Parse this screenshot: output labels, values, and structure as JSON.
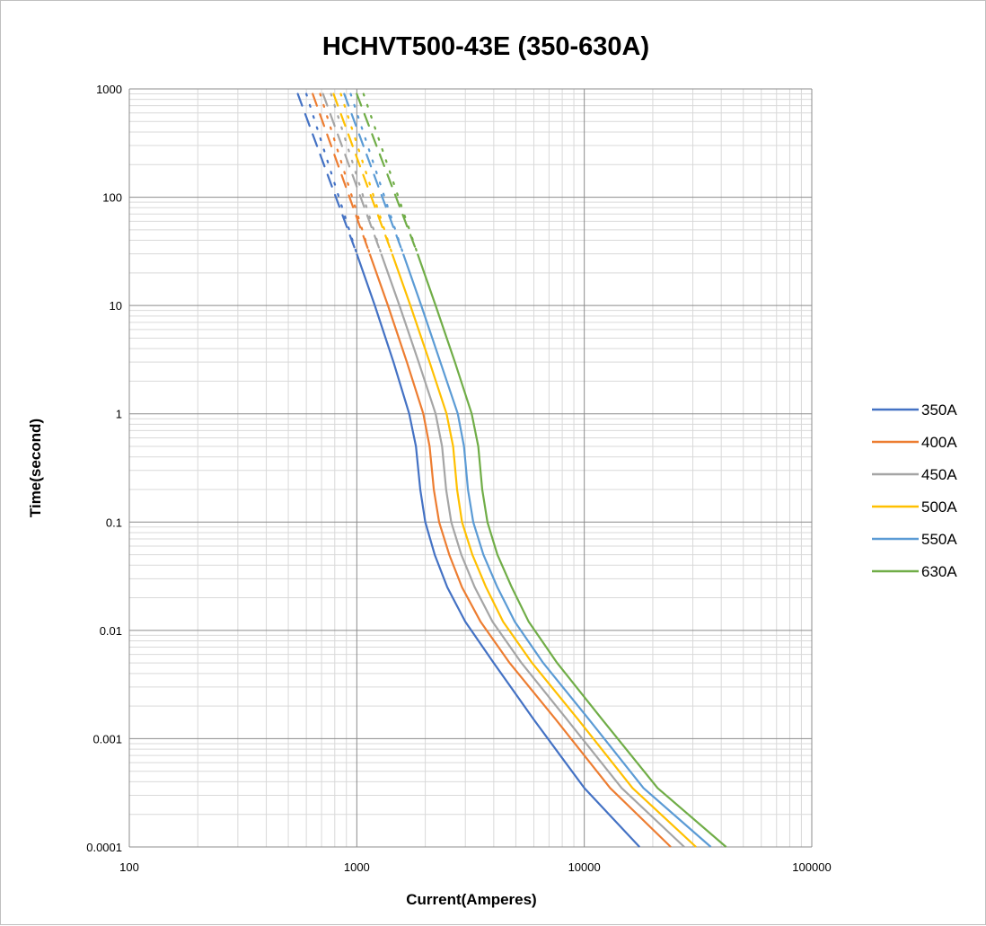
{
  "chart_data": {
    "type": "line",
    "title": "HCHVT500-43E  (350-630A)",
    "xlabel": "Current(Amperes)",
    "ylabel": "Time(second)",
    "x_scale": "log",
    "y_scale": "log",
    "xlim": [
      100,
      100000
    ],
    "ylim": [
      0.0001,
      1000
    ],
    "x_ticks": [
      "100",
      "1000",
      "10000",
      "100000"
    ],
    "y_ticks": [
      "0.0001",
      "0.001",
      "0.01",
      "0.1",
      "1",
      "10",
      "100",
      "1000"
    ],
    "grid": true,
    "legend_position": "right",
    "series": [
      {
        "name": "350A",
        "color": "#4472c4",
        "extrapolated_segments": [
          {
            "style": "dashed",
            "points": [
              [
                550,
                900
              ],
              [
                1000,
                30
              ]
            ]
          },
          {
            "style": "dotted",
            "points": [
              [
                600,
                900
              ],
              [
                1000,
                30
              ]
            ]
          }
        ],
        "points": [
          [
            1000,
            30
          ],
          [
            1200,
            10
          ],
          [
            1450,
            3
          ],
          [
            1700,
            1
          ],
          [
            1820,
            0.5
          ],
          [
            1900,
            0.2
          ],
          [
            2000,
            0.1
          ],
          [
            2200,
            0.05
          ],
          [
            2500,
            0.025
          ],
          [
            3000,
            0.012
          ],
          [
            4000,
            0.005
          ],
          [
            6000,
            0.0015
          ],
          [
            10000,
            0.00035
          ],
          [
            17500,
            0.0001
          ]
        ]
      },
      {
        "name": "400A",
        "color": "#ed7d31",
        "extrapolated_segments": [
          {
            "style": "dashed",
            "points": [
              [
                640,
                900
              ],
              [
                1140,
                30
              ]
            ]
          },
          {
            "style": "dotted",
            "points": [
              [
                690,
                900
              ],
              [
                1140,
                30
              ]
            ]
          }
        ],
        "points": [
          [
            1140,
            30
          ],
          [
            1370,
            10
          ],
          [
            1660,
            3
          ],
          [
            1960,
            1
          ],
          [
            2090,
            0.5
          ],
          [
            2180,
            0.2
          ],
          [
            2300,
            0.1
          ],
          [
            2550,
            0.05
          ],
          [
            2900,
            0.025
          ],
          [
            3500,
            0.012
          ],
          [
            4700,
            0.005
          ],
          [
            7500,
            0.0015
          ],
          [
            13000,
            0.00035
          ],
          [
            24000,
            0.0001
          ]
        ]
      },
      {
        "name": "450A",
        "color": "#a5a5a5",
        "extrapolated_segments": [
          {
            "style": "dashed",
            "points": [
              [
                710,
                900
              ],
              [
                1280,
                30
              ]
            ]
          },
          {
            "style": "dotted",
            "points": [
              [
                770,
                900
              ],
              [
                1280,
                30
              ]
            ]
          }
        ],
        "points": [
          [
            1280,
            30
          ],
          [
            1540,
            10
          ],
          [
            1870,
            3
          ],
          [
            2220,
            1
          ],
          [
            2370,
            0.5
          ],
          [
            2470,
            0.2
          ],
          [
            2600,
            0.1
          ],
          [
            2880,
            0.05
          ],
          [
            3300,
            0.025
          ],
          [
            3950,
            0.012
          ],
          [
            5300,
            0.005
          ],
          [
            8400,
            0.0015
          ],
          [
            14600,
            0.00035
          ],
          [
            27500,
            0.0001
          ]
        ]
      },
      {
        "name": "500A",
        "color": "#ffc000",
        "extrapolated_segments": [
          {
            "style": "dashed",
            "points": [
              [
                790,
                900
              ],
              [
                1430,
                30
              ]
            ]
          },
          {
            "style": "dotted",
            "points": [
              [
                850,
                900
              ],
              [
                1430,
                30
              ]
            ]
          }
        ],
        "points": [
          [
            1430,
            30
          ],
          [
            1720,
            10
          ],
          [
            2090,
            3
          ],
          [
            2480,
            1
          ],
          [
            2650,
            0.5
          ],
          [
            2760,
            0.2
          ],
          [
            2900,
            0.1
          ],
          [
            3220,
            0.05
          ],
          [
            3700,
            0.025
          ],
          [
            4400,
            0.012
          ],
          [
            5900,
            0.005
          ],
          [
            9400,
            0.0015
          ],
          [
            16300,
            0.00035
          ],
          [
            31000,
            0.0001
          ]
        ]
      },
      {
        "name": "550A",
        "color": "#5b9bd5",
        "extrapolated_segments": [
          {
            "style": "dashed",
            "points": [
              [
                880,
                900
              ],
              [
                1600,
                30
              ]
            ]
          },
          {
            "style": "dotted",
            "points": [
              [
                940,
                900
              ],
              [
                1600,
                30
              ]
            ]
          }
        ],
        "points": [
          [
            1600,
            30
          ],
          [
            1920,
            10
          ],
          [
            2330,
            3
          ],
          [
            2780,
            1
          ],
          [
            2960,
            0.5
          ],
          [
            3080,
            0.2
          ],
          [
            3250,
            0.1
          ],
          [
            3600,
            0.05
          ],
          [
            4150,
            0.025
          ],
          [
            4950,
            0.012
          ],
          [
            6600,
            0.005
          ],
          [
            10500,
            0.0015
          ],
          [
            18200,
            0.00035
          ],
          [
            36000,
            0.0001
          ]
        ]
      },
      {
        "name": "630A",
        "color": "#70ad47",
        "extrapolated_segments": [
          {
            "style": "dashed",
            "points": [
              [
                1000,
                900
              ],
              [
                1850,
                30
              ]
            ]
          },
          {
            "style": "dotted",
            "points": [
              [
                1070,
                900
              ],
              [
                1850,
                30
              ]
            ]
          }
        ],
        "points": [
          [
            1850,
            30
          ],
          [
            2220,
            10
          ],
          [
            2700,
            3
          ],
          [
            3200,
            1
          ],
          [
            3420,
            0.5
          ],
          [
            3560,
            0.2
          ],
          [
            3750,
            0.1
          ],
          [
            4150,
            0.05
          ],
          [
            4800,
            0.025
          ],
          [
            5700,
            0.012
          ],
          [
            7600,
            0.005
          ],
          [
            12000,
            0.0015
          ],
          [
            21000,
            0.00035
          ],
          [
            42000,
            0.0001
          ]
        ]
      }
    ]
  }
}
